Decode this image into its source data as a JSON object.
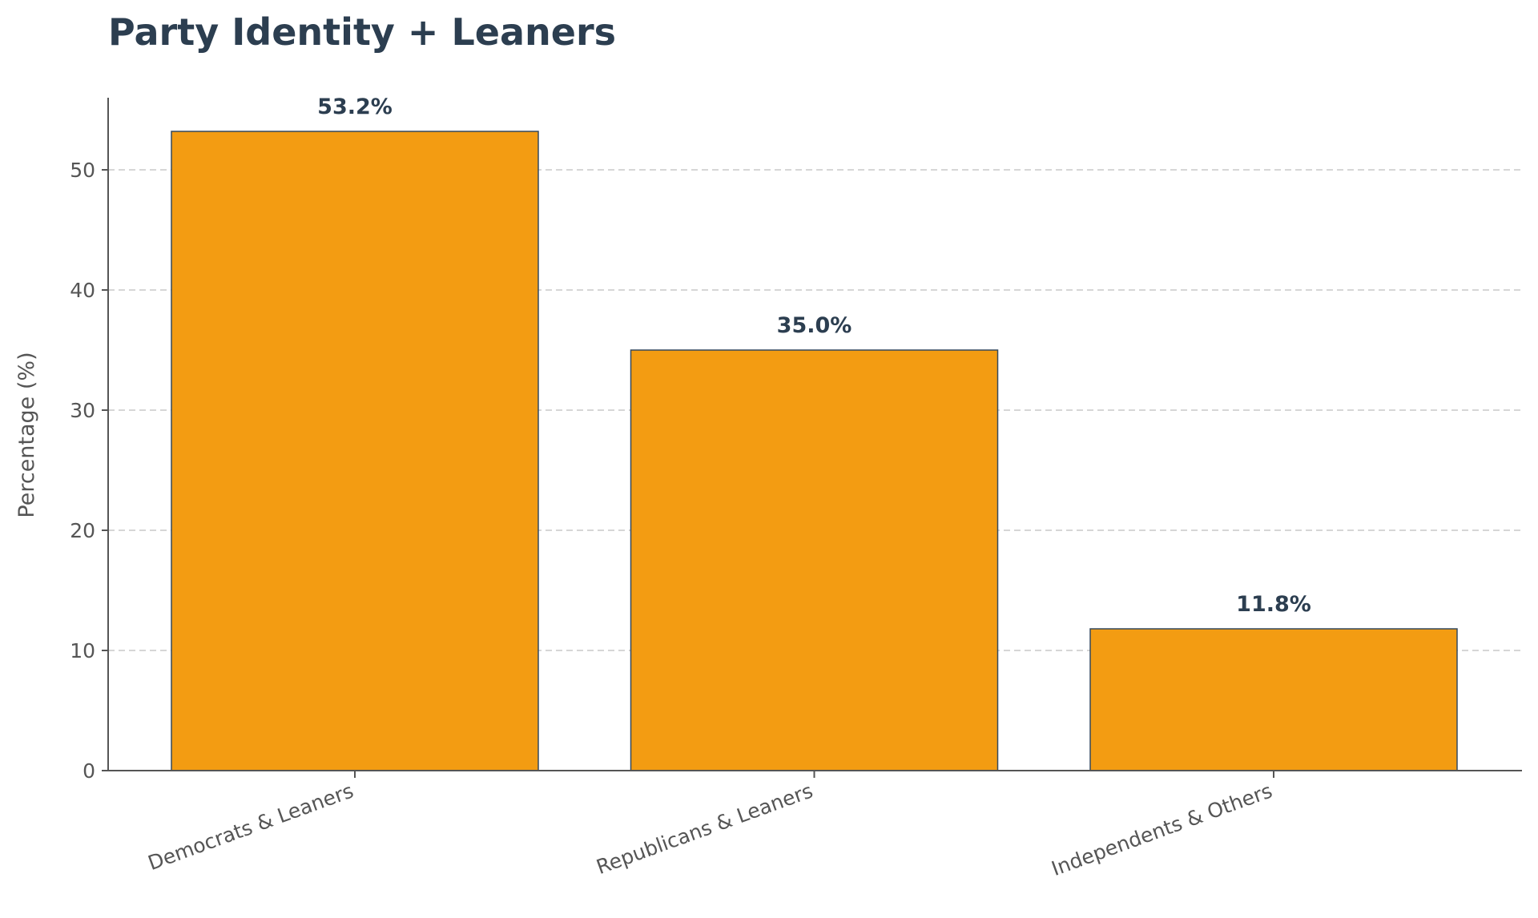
{
  "chart_data": {
    "type": "bar",
    "title": "Party Identity + Leaners",
    "xlabel": "",
    "ylabel": "Percentage (%)",
    "categories": [
      "Democrats & Leaners",
      "Republicans & Leaners",
      "Independents & Others"
    ],
    "values": [
      53.2,
      35.0,
      11.8
    ],
    "value_labels": [
      "53.2%",
      "35.0%",
      "11.8%"
    ],
    "ylim": [
      0,
      56
    ],
    "yticks": [
      0,
      10,
      20,
      30,
      40,
      50
    ],
    "ytick_labels": [
      "0",
      "10",
      "20",
      "30",
      "40",
      "50"
    ],
    "grid": "y-dashed",
    "bar_color": "#f39c12",
    "edge_color": "#34495e",
    "title_color": "#2c3e50"
  }
}
